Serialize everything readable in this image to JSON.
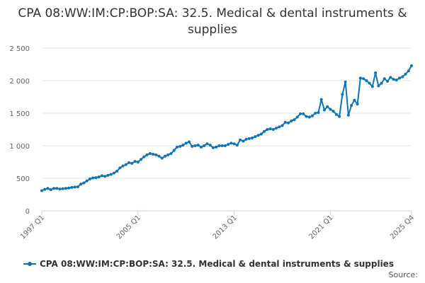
{
  "title": "CPA 08:WW:IM:CP:BOP:SA: 32.5. Medical & dental instruments & supplies",
  "source_label": "Source:",
  "colors": {
    "series": "#0d75b7",
    "grid": "#e6e6e6",
    "axis": "#ccd6eb"
  },
  "chart_data": {
    "type": "line",
    "title": "CPA 08:WW:IM:CP:BOP:SA: 32.5. Medical & dental instruments & supplies",
    "xlabel": "",
    "ylabel": "",
    "ylim": [
      0,
      2500
    ],
    "y_ticks": [
      0,
      500,
      1000,
      1500,
      2000,
      2500
    ],
    "y_tick_labels": [
      "0",
      "500",
      "1 000",
      "1 500",
      "2 000",
      "2 500"
    ],
    "x_tick_labels": [
      "1997 Q1",
      "2005 Q1",
      "2013 Q1",
      "2021 Q1",
      "2025 Q4"
    ],
    "x_start": "1997 Q1",
    "x_end": "2025 Q4",
    "grid": true,
    "legend_position": "bottom",
    "series": [
      {
        "name": "CPA 08:WW:IM:CP:BOP:SA: 32.5. Medical & dental instruments & supplies",
        "values": [
          310,
          330,
          345,
          325,
          345,
          345,
          335,
          340,
          345,
          350,
          360,
          365,
          370,
          410,
          430,
          460,
          490,
          505,
          510,
          520,
          540,
          530,
          545,
          560,
          580,
          610,
          660,
          690,
          710,
          740,
          730,
          760,
          750,
          790,
          830,
          860,
          880,
          870,
          860,
          840,
          810,
          840,
          860,
          880,
          930,
          980,
          990,
          1010,
          1040,
          1060,
          990,
          1000,
          1010,
          980,
          1000,
          1030,
          1010,
          970,
          980,
          1000,
          1000,
          1000,
          1020,
          1040,
          1030,
          1010,
          1090,
          1070,
          1100,
          1110,
          1120,
          1140,
          1160,
          1180,
          1220,
          1250,
          1260,
          1250,
          1270,
          1290,
          1310,
          1360,
          1350,
          1380,
          1400,
          1440,
          1490,
          1490,
          1450,
          1440,
          1460,
          1500,
          1510,
          1710,
          1550,
          1600,
          1560,
          1530,
          1480,
          1450,
          1790,
          1980,
          1470,
          1620,
          1700,
          1640,
          2040,
          2030,
          2000,
          1960,
          1910,
          2120,
          1920,
          1960,
          2030,
          1990,
          2050,
          2020,
          2010,
          2040,
          2060,
          2100,
          2150,
          2230
        ]
      }
    ]
  }
}
